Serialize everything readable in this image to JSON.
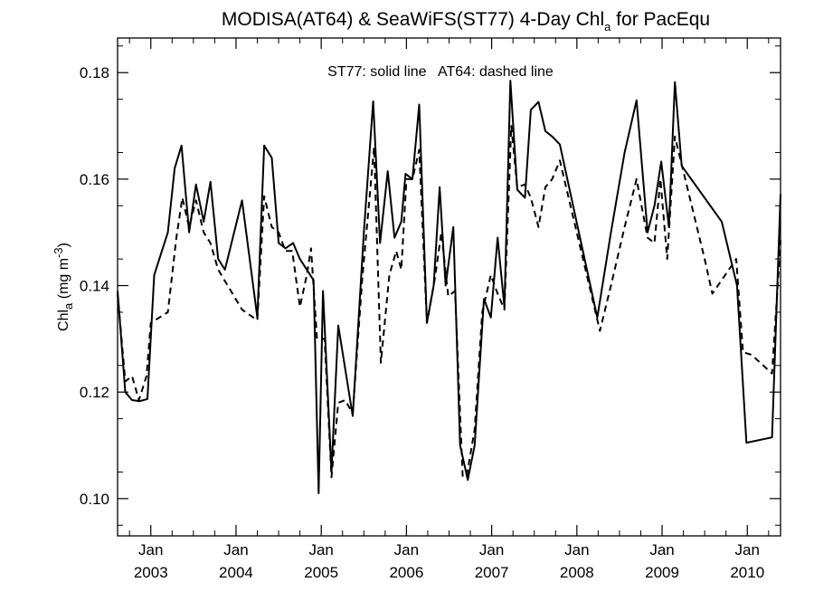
{
  "chart_data": {
    "type": "line",
    "title": {
      "main": "MODISA(AT64) & SeaWiFS(ST77) 4-Day Chl",
      "sub": "a",
      "suffix": " for PacEqu"
    },
    "annotation": "ST77: solid line   AT64: dashed line",
    "ylabel": {
      "main": "Chl",
      "sub": "a",
      "units": " (mg m",
      "sup": "-3",
      "close": ")"
    },
    "x_tick_month": "Jan",
    "x_ticks": [
      {
        "year": 2003,
        "label": "2003"
      },
      {
        "year": 2004,
        "label": "2004"
      },
      {
        "year": 2005,
        "label": "2005"
      },
      {
        "year": 2006,
        "label": "2006"
      },
      {
        "year": 2007,
        "label": "2007"
      },
      {
        "year": 2008,
        "label": "2008"
      },
      {
        "year": 2009,
        "label": "2009"
      },
      {
        "year": 2010,
        "label": "2010"
      }
    ],
    "y_ticks": [
      {
        "value": 0.1,
        "label": "0.10"
      },
      {
        "value": 0.12,
        "label": "0.12"
      },
      {
        "value": 0.14,
        "label": "0.14"
      },
      {
        "value": 0.16,
        "label": "0.16"
      },
      {
        "value": 0.18,
        "label": "0.18"
      }
    ],
    "xlim": [
      2002.61,
      2010.39
    ],
    "ylim": [
      0.093,
      0.1865
    ],
    "grid": false,
    "legend": "none",
    "series": [
      {
        "key": "ST77",
        "style": "solid",
        "color": "#000000",
        "points": [
          [
            2002.61,
            0.139
          ],
          [
            2002.7,
            0.12
          ],
          [
            2002.78,
            0.1185
          ],
          [
            2002.87,
            0.1183
          ],
          [
            2002.96,
            0.1187
          ],
          [
            2003.04,
            0.142
          ],
          [
            2003.2,
            0.15
          ],
          [
            2003.28,
            0.162
          ],
          [
            2003.36,
            0.1663
          ],
          [
            2003.45,
            0.15
          ],
          [
            2003.53,
            0.159
          ],
          [
            2003.62,
            0.152
          ],
          [
            2003.7,
            0.1595
          ],
          [
            2003.79,
            0.145
          ],
          [
            2003.87,
            0.143
          ],
          [
            2004.07,
            0.156
          ],
          [
            2004.25,
            0.134
          ],
          [
            2004.33,
            0.1663
          ],
          [
            2004.42,
            0.164
          ],
          [
            2004.5,
            0.148
          ],
          [
            2004.58,
            0.147
          ],
          [
            2004.67,
            0.148
          ],
          [
            2004.75,
            0.145
          ],
          [
            2004.83,
            0.143
          ],
          [
            2004.91,
            0.141
          ],
          [
            2004.97,
            0.101
          ],
          [
            2005.02,
            0.139
          ],
          [
            2005.12,
            0.105
          ],
          [
            2005.2,
            0.1325
          ],
          [
            2005.37,
            0.1155
          ],
          [
            2005.5,
            0.15
          ],
          [
            2005.61,
            0.1746
          ],
          [
            2005.69,
            0.148
          ],
          [
            2005.78,
            0.1615
          ],
          [
            2005.86,
            0.149
          ],
          [
            2005.94,
            0.152
          ],
          [
            2005.99,
            0.161
          ],
          [
            2006.07,
            0.16
          ],
          [
            2006.15,
            0.174
          ],
          [
            2006.24,
            0.133
          ],
          [
            2006.32,
            0.14
          ],
          [
            2006.39,
            0.1585
          ],
          [
            2006.46,
            0.14
          ],
          [
            2006.55,
            0.151
          ],
          [
            2006.63,
            0.11
          ],
          [
            2006.72,
            0.1035
          ],
          [
            2006.8,
            0.11
          ],
          [
            2006.91,
            0.1375
          ],
          [
            2006.99,
            0.134
          ],
          [
            2007.07,
            0.149
          ],
          [
            2007.15,
            0.136
          ],
          [
            2007.22,
            0.1785
          ],
          [
            2007.3,
            0.158
          ],
          [
            2007.39,
            0.1565
          ],
          [
            2007.46,
            0.173
          ],
          [
            2007.55,
            0.1745
          ],
          [
            2007.63,
            0.169
          ],
          [
            2007.71,
            0.168
          ],
          [
            2007.8,
            0.1665
          ],
          [
            2008.24,
            0.134
          ],
          [
            2008.4,
            0.15
          ],
          [
            2008.56,
            0.165
          ],
          [
            2008.7,
            0.1748
          ],
          [
            2008.83,
            0.15
          ],
          [
            2008.91,
            0.155
          ],
          [
            2008.99,
            0.1633
          ],
          [
            2009.08,
            0.151
          ],
          [
            2009.15,
            0.1782
          ],
          [
            2009.23,
            0.1625
          ],
          [
            2009.7,
            0.152
          ],
          [
            2009.88,
            0.14
          ],
          [
            2009.99,
            0.1105
          ],
          [
            2010.29,
            0.1115
          ],
          [
            2010.39,
            0.1572
          ]
        ]
      },
      {
        "key": "AT64",
        "style": "dashed",
        "color": "#000000",
        "points": [
          [
            2002.61,
            0.1385
          ],
          [
            2002.7,
            0.122
          ],
          [
            2002.78,
            0.123
          ],
          [
            2002.86,
            0.1185
          ],
          [
            2002.95,
            0.123
          ],
          [
            2003.0,
            0.133
          ],
          [
            2003.2,
            0.135
          ],
          [
            2003.3,
            0.149
          ],
          [
            2003.37,
            0.1565
          ],
          [
            2003.45,
            0.151
          ],
          [
            2003.53,
            0.156
          ],
          [
            2003.62,
            0.15
          ],
          [
            2003.7,
            0.148
          ],
          [
            2003.79,
            0.143
          ],
          [
            2004.07,
            0.1355
          ],
          [
            2004.25,
            0.1335
          ],
          [
            2004.33,
            0.1568
          ],
          [
            2004.42,
            0.151
          ],
          [
            2004.5,
            0.15
          ],
          [
            2004.58,
            0.1465
          ],
          [
            2004.66,
            0.1465
          ],
          [
            2004.75,
            0.136
          ],
          [
            2004.83,
            0.142
          ],
          [
            2004.88,
            0.147
          ],
          [
            2004.95,
            0.13
          ],
          [
            2005.04,
            0.13
          ],
          [
            2005.12,
            0.104
          ],
          [
            2005.2,
            0.118
          ],
          [
            2005.28,
            0.1185
          ],
          [
            2005.37,
            0.116
          ],
          [
            2005.48,
            0.141
          ],
          [
            2005.62,
            0.166
          ],
          [
            2005.7,
            0.1255
          ],
          [
            2005.8,
            0.142
          ],
          [
            2005.88,
            0.1465
          ],
          [
            2005.94,
            0.143
          ],
          [
            2006.0,
            0.16
          ],
          [
            2006.07,
            0.16
          ],
          [
            2006.15,
            0.1655
          ],
          [
            2006.24,
            0.133
          ],
          [
            2006.33,
            0.141
          ],
          [
            2006.41,
            0.15
          ],
          [
            2006.49,
            0.138
          ],
          [
            2006.57,
            0.139
          ],
          [
            2006.66,
            0.104
          ],
          [
            2006.71,
            0.1045
          ],
          [
            2006.8,
            0.113
          ],
          [
            2006.89,
            0.135
          ],
          [
            2006.99,
            0.142
          ],
          [
            2007.07,
            0.1385
          ],
          [
            2007.15,
            0.1355
          ],
          [
            2007.23,
            0.17
          ],
          [
            2007.3,
            0.1585
          ],
          [
            2007.39,
            0.159
          ],
          [
            2007.46,
            0.1565
          ],
          [
            2007.55,
            0.151
          ],
          [
            2007.63,
            0.1585
          ],
          [
            2007.71,
            0.16
          ],
          [
            2007.8,
            0.1635
          ],
          [
            2008.27,
            0.1315
          ],
          [
            2008.4,
            0.14
          ],
          [
            2008.56,
            0.151
          ],
          [
            2008.7,
            0.16
          ],
          [
            2008.83,
            0.149
          ],
          [
            2008.91,
            0.148
          ],
          [
            2008.98,
            0.16
          ],
          [
            2009.06,
            0.145
          ],
          [
            2009.15,
            0.168
          ],
          [
            2009.5,
            0.145
          ],
          [
            2009.59,
            0.1385
          ],
          [
            2009.87,
            0.145
          ],
          [
            2009.95,
            0.1275
          ],
          [
            2010.05,
            0.127
          ],
          [
            2010.29,
            0.1235
          ],
          [
            2010.39,
            0.1485
          ]
        ]
      }
    ]
  }
}
